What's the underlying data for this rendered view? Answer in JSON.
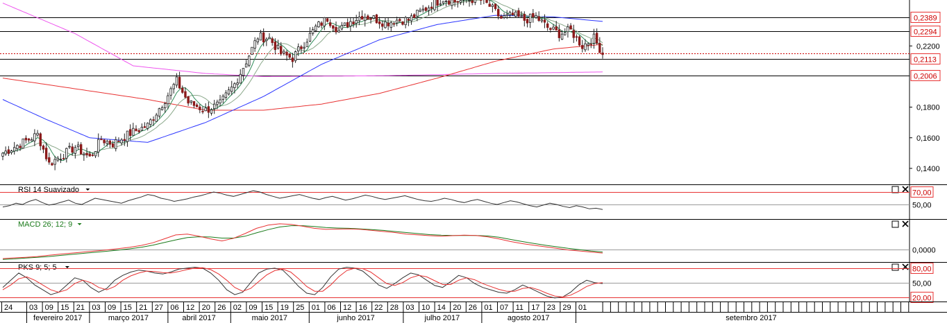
{
  "chart_data": {
    "type": "candlestick",
    "price_axis": {
      "ticks": [
        "0,2200",
        "0,1800",
        "0,1600",
        "0,1400"
      ],
      "tick_values": [
        0.22,
        0.18,
        0.16,
        0.14
      ],
      "range": [
        0.13,
        0.25
      ]
    },
    "level_lines": [
      {
        "value": 0.2389,
        "label": "0,2389",
        "style": "solid",
        "color": "#000000"
      },
      {
        "value": 0.2294,
        "label": "0,2294",
        "style": "solid",
        "color": "#000000"
      },
      {
        "value": 0.2153,
        "label": "",
        "style": "dotted",
        "color": "#cc0000"
      },
      {
        "value": 0.2113,
        "label": "0,2113",
        "style": "solid",
        "color": "#000000"
      },
      {
        "value": 0.2006,
        "label": "0,2006",
        "style": "solid",
        "color": "#000000"
      }
    ],
    "moving_average_colors": [
      "#2e8b57",
      "#8aa88a",
      "#2b35ff",
      "#e83232",
      "#ee55ee"
    ],
    "price_path": [
      {
        "i": 0,
        "close": 0.15
      },
      {
        "i": 8,
        "close": 0.158
      },
      {
        "i": 12,
        "close": 0.162
      },
      {
        "i": 16,
        "close": 0.143
      },
      {
        "i": 20,
        "close": 0.148
      },
      {
        "i": 25,
        "close": 0.154
      },
      {
        "i": 30,
        "close": 0.147
      },
      {
        "i": 34,
        "close": 0.159
      },
      {
        "i": 38,
        "close": 0.156
      },
      {
        "i": 44,
        "close": 0.163
      },
      {
        "i": 50,
        "close": 0.168
      },
      {
        "i": 56,
        "close": 0.185
      },
      {
        "i": 60,
        "close": 0.197
      },
      {
        "i": 64,
        "close": 0.183
      },
      {
        "i": 70,
        "close": 0.178
      },
      {
        "i": 75,
        "close": 0.182
      },
      {
        "i": 80,
        "close": 0.195
      },
      {
        "i": 84,
        "close": 0.21
      },
      {
        "i": 88,
        "close": 0.226
      },
      {
        "i": 92,
        "close": 0.225
      },
      {
        "i": 96,
        "close": 0.215
      },
      {
        "i": 100,
        "close": 0.212
      },
      {
        "i": 104,
        "close": 0.222
      },
      {
        "i": 108,
        "close": 0.232
      },
      {
        "i": 112,
        "close": 0.238
      },
      {
        "i": 116,
        "close": 0.23
      },
      {
        "i": 120,
        "close": 0.236
      },
      {
        "i": 124,
        "close": 0.24
      },
      {
        "i": 128,
        "close": 0.238
      },
      {
        "i": 132,
        "close": 0.235
      },
      {
        "i": 136,
        "close": 0.237
      },
      {
        "i": 140,
        "close": 0.237
      },
      {
        "i": 144,
        "close": 0.242
      },
      {
        "i": 148,
        "close": 0.247
      },
      {
        "i": 152,
        "close": 0.251
      },
      {
        "i": 156,
        "close": 0.249
      },
      {
        "i": 160,
        "close": 0.25
      },
      {
        "i": 164,
        "close": 0.251
      },
      {
        "i": 168,
        "close": 0.246
      },
      {
        "i": 172,
        "close": 0.238
      },
      {
        "i": 176,
        "close": 0.24
      },
      {
        "i": 180,
        "close": 0.237
      },
      {
        "i": 184,
        "close": 0.239
      },
      {
        "i": 188,
        "close": 0.232
      },
      {
        "i": 192,
        "close": 0.228
      },
      {
        "i": 196,
        "close": 0.23
      },
      {
        "i": 200,
        "close": 0.22
      },
      {
        "i": 204,
        "close": 0.225
      },
      {
        "i": 207,
        "close": 0.215
      }
    ],
    "candle_count": 208,
    "ma_profiles": {
      "ma_pink": [
        [
          0,
          0.248
        ],
        [
          25,
          0.228
        ],
        [
          45,
          0.207
        ],
        [
          70,
          0.202
        ],
        [
          90,
          0.2
        ],
        [
          130,
          0.2005
        ],
        [
          170,
          0.202
        ],
        [
          207,
          0.203
        ]
      ],
      "ma_red": [
        [
          0,
          0.199
        ],
        [
          25,
          0.192
        ],
        [
          50,
          0.185
        ],
        [
          70,
          0.178
        ],
        [
          90,
          0.178
        ],
        [
          110,
          0.182
        ],
        [
          130,
          0.189
        ],
        [
          150,
          0.199
        ],
        [
          170,
          0.21
        ],
        [
          190,
          0.218
        ],
        [
          207,
          0.221
        ]
      ],
      "ma_blue": [
        [
          0,
          0.185
        ],
        [
          15,
          0.172
        ],
        [
          30,
          0.16
        ],
        [
          50,
          0.157
        ],
        [
          70,
          0.17
        ],
        [
          90,
          0.187
        ],
        [
          110,
          0.208
        ],
        [
          130,
          0.224
        ],
        [
          150,
          0.234
        ],
        [
          170,
          0.24
        ],
        [
          190,
          0.239
        ],
        [
          207,
          0.236
        ]
      ]
    },
    "time_axis": {
      "days": [
        "24",
        "03",
        "09",
        "15",
        "21",
        "03",
        "09",
        "15",
        "21",
        "27",
        "06",
        "12",
        "20",
        "26",
        "02",
        "09",
        "15",
        "19",
        "25",
        "01",
        "06",
        "12",
        "16",
        "22",
        "28",
        "03",
        "10",
        "14",
        "20",
        "26",
        "01",
        "07",
        "11",
        "17",
        "23",
        "29",
        "01"
      ],
      "months": [
        "fevereiro 2017",
        "março 2017",
        "abril 2017",
        "maio 2017",
        "junho 2017",
        "julho 2017",
        "agosto 2017",
        "setembro 2017"
      ]
    }
  },
  "rsi_panel": {
    "title": "RSI 14 Suavizado",
    "levels": [
      {
        "value": 70,
        "label": "70,00"
      },
      {
        "value": 50,
        "label": "50,00"
      }
    ],
    "range": [
      30,
      80
    ],
    "values": [
      46,
      48,
      52,
      50,
      55,
      58,
      53,
      49,
      51,
      54,
      57,
      52,
      50,
      55,
      60,
      58,
      56,
      54,
      52,
      56,
      59,
      62,
      66,
      64,
      60,
      58,
      55,
      57,
      59,
      62,
      64,
      67,
      70,
      68,
      65,
      63,
      66,
      69,
      72,
      70,
      66,
      63,
      60,
      62,
      64,
      66,
      63,
      60,
      58,
      61,
      63,
      60,
      57,
      59,
      62,
      65,
      63,
      60,
      58,
      60,
      62,
      64,
      61,
      58,
      56,
      55,
      57,
      60,
      58,
      55,
      53,
      56,
      58,
      55,
      52,
      50,
      53,
      56,
      54,
      51,
      48,
      46,
      49,
      52,
      50,
      47,
      45,
      48,
      46,
      43,
      44,
      42
    ]
  },
  "macd_panel": {
    "title": "MACD 26; 12; 9",
    "levels": [
      {
        "value": 0,
        "label": "0,0000"
      }
    ],
    "range": [
      -0.004,
      0.011
    ],
    "macd_color": "#e83232",
    "signal_color": "#1a7a1a",
    "macd": [
      -0.0035,
      -0.0032,
      -0.003,
      -0.0027,
      -0.0022,
      -0.0018,
      -0.0014,
      -0.001,
      -0.0006,
      -0.0002,
      0.0003,
      0.0008,
      0.0015,
      0.0025,
      0.004,
      0.0055,
      0.0058,
      0.005,
      0.004,
      0.0032,
      0.0042,
      0.006,
      0.008,
      0.0092,
      0.0097,
      0.0095,
      0.0088,
      0.008,
      0.0076,
      0.0077,
      0.0078,
      0.0076,
      0.0072,
      0.0068,
      0.0064,
      0.0058,
      0.0055,
      0.0052,
      0.005,
      0.0052,
      0.0054,
      0.0053,
      0.0048,
      0.004,
      0.003,
      0.0022,
      0.0016,
      0.001,
      0.0004,
      -0.0002,
      -0.0006,
      -0.001,
      -0.0014
    ],
    "signal": [
      -0.0038,
      -0.0036,
      -0.0033,
      -0.003,
      -0.0027,
      -0.0023,
      -0.0019,
      -0.0015,
      -0.0011,
      -0.0007,
      -0.0003,
      0.0002,
      0.0008,
      0.0016,
      0.0026,
      0.0036,
      0.0045,
      0.0048,
      0.0047,
      0.0043,
      0.0043,
      0.005,
      0.0063,
      0.0075,
      0.0085,
      0.009,
      0.009,
      0.0087,
      0.0083,
      0.0081,
      0.008,
      0.0078,
      0.0075,
      0.0072,
      0.0068,
      0.0064,
      0.006,
      0.0056,
      0.0054,
      0.0053,
      0.0053,
      0.0053,
      0.0051,
      0.0046,
      0.0038,
      0.003,
      0.0023,
      0.0016,
      0.001,
      0.0004,
      -0.0001,
      -0.0006,
      -0.001
    ]
  },
  "pks_panel": {
    "title": "PKS 9; 5; 5",
    "levels": [
      {
        "value": 80,
        "label": "80,00"
      },
      {
        "value": 50,
        "label": "50,00"
      },
      {
        "value": 20,
        "label": "20,00"
      }
    ],
    "range": [
      15,
      90
    ],
    "k_color": "#333333",
    "d_color": "#e83232",
    "k": [
      40,
      55,
      70,
      60,
      45,
      35,
      25,
      30,
      45,
      60,
      55,
      40,
      30,
      38,
      55,
      65,
      72,
      76,
      74,
      70,
      68,
      72,
      78,
      80,
      82,
      80,
      70,
      55,
      35,
      25,
      30,
      50,
      70,
      78,
      80,
      76,
      60,
      42,
      28,
      25,
      40,
      62,
      78,
      82,
      80,
      74,
      60,
      45,
      38,
      48,
      60,
      70,
      66,
      55,
      44,
      40,
      52,
      65,
      60,
      48,
      40,
      35,
      30,
      28,
      35,
      45,
      38,
      30,
      22,
      18,
      20,
      30,
      45,
      55,
      50,
      48
    ],
    "d": [
      35,
      45,
      58,
      62,
      55,
      45,
      35,
      30,
      35,
      48,
      55,
      50,
      40,
      35,
      42,
      55,
      64,
      70,
      74,
      73,
      71,
      70,
      73,
      77,
      80,
      81,
      77,
      68,
      55,
      40,
      32,
      38,
      52,
      66,
      75,
      78,
      72,
      58,
      42,
      32,
      32,
      45,
      62,
      75,
      80,
      79,
      72,
      60,
      48,
      44,
      50,
      60,
      65,
      62,
      54,
      46,
      46,
      55,
      60,
      56,
      48,
      42,
      36,
      32,
      32,
      38,
      40,
      35,
      28,
      22,
      20,
      24,
      32,
      42,
      48,
      50
    ]
  },
  "colors": {
    "grid": "#000000",
    "label_box": "#e83232",
    "label_text": "#cc0000",
    "bull_candle_border": "#1a1a1a",
    "bear_candle_fill": "#8b1a1a",
    "macd_title": "#1a7a1a"
  },
  "icons": {
    "maximize": "square-icon",
    "close": "x-icon"
  }
}
